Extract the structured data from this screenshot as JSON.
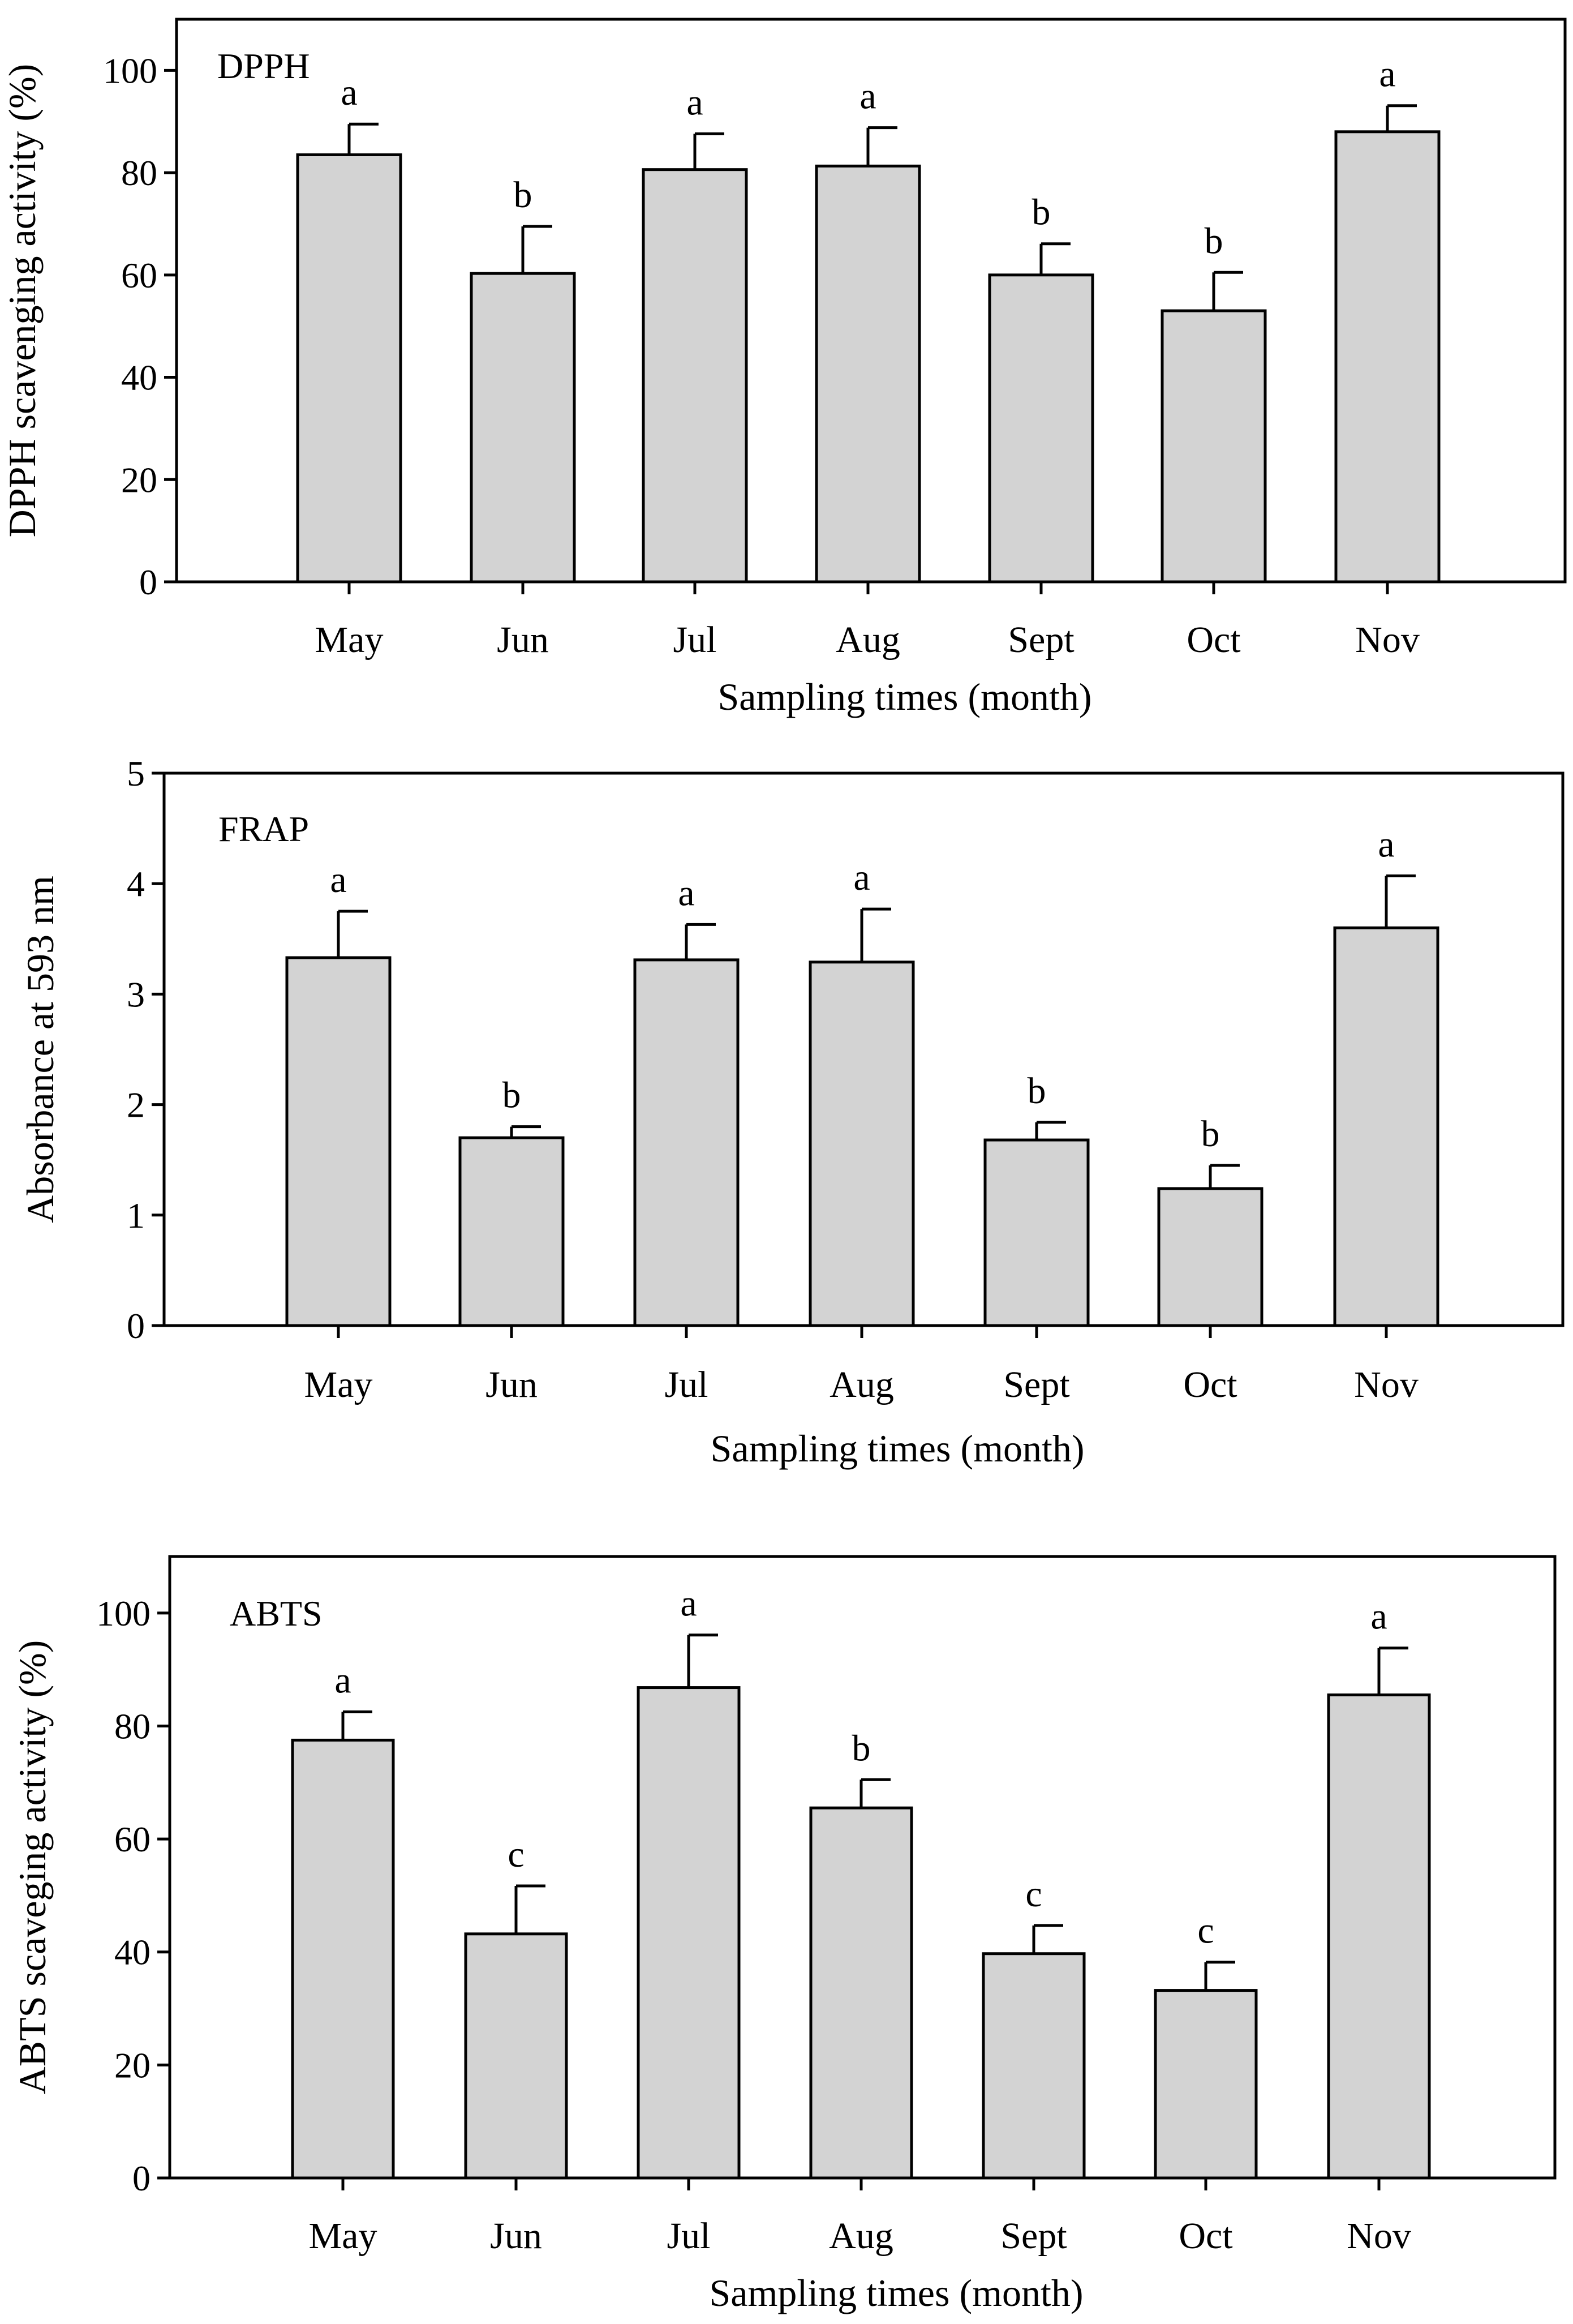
{
  "figure": {
    "description_alt": ""
  },
  "chart_data": [
    {
      "type": "bar",
      "panel_label": "DPPH",
      "xlabel": "Sampling times (month)",
      "ylabel": "DPPH scavenging activity (%)",
      "ylim": [
        0,
        110
      ],
      "yticks": [
        0,
        20,
        40,
        60,
        80,
        100
      ],
      "categories": [
        "May",
        "Jun",
        "Jul",
        "Aug",
        "Sept",
        "Oct",
        "Nov"
      ],
      "values": [
        83.5,
        60.3,
        80.6,
        81.3,
        60.0,
        53.0,
        88.0
      ],
      "errors": [
        6.0,
        9.2,
        7.0,
        7.5,
        6.1,
        7.5,
        5.1
      ],
      "significance": [
        "a",
        "b",
        "a",
        "a",
        "b",
        "b",
        "a"
      ]
    },
    {
      "type": "bar",
      "panel_label": "FRAP",
      "xlabel": "Sampling times (month)",
      "ylabel": "Absorbance at 593 nm",
      "ylim": [
        0,
        5
      ],
      "yticks": [
        0,
        1,
        2,
        3,
        4,
        5
      ],
      "categories": [
        "May",
        "Jun",
        "Jul",
        "Aug",
        "Sept",
        "Oct",
        "Nov"
      ],
      "values": [
        3.33,
        1.7,
        3.31,
        3.29,
        1.68,
        1.24,
        3.6
      ],
      "errors": [
        0.42,
        0.1,
        0.32,
        0.48,
        0.16,
        0.21,
        0.47
      ],
      "significance": [
        "a",
        "b",
        "a",
        "a",
        "b",
        "b",
        "a"
      ]
    },
    {
      "type": "bar",
      "panel_label": "ABTS",
      "xlabel": "Sampling times (month)",
      "ylabel": "ABTS scaveging activity (%)",
      "ylim": [
        0,
        110
      ],
      "yticks": [
        0,
        20,
        40,
        60,
        80,
        100
      ],
      "categories": [
        "May",
        "Jun",
        "Jul",
        "Aug",
        "Sept",
        "Oct",
        "Nov"
      ],
      "values": [
        77.5,
        43.2,
        86.8,
        65.5,
        39.7,
        33.2,
        85.5
      ],
      "errors": [
        5.0,
        8.5,
        9.3,
        5.0,
        5.0,
        5.0,
        8.3
      ],
      "significance": [
        "a",
        "c",
        "a",
        "b",
        "c",
        "c",
        "a"
      ]
    }
  ]
}
